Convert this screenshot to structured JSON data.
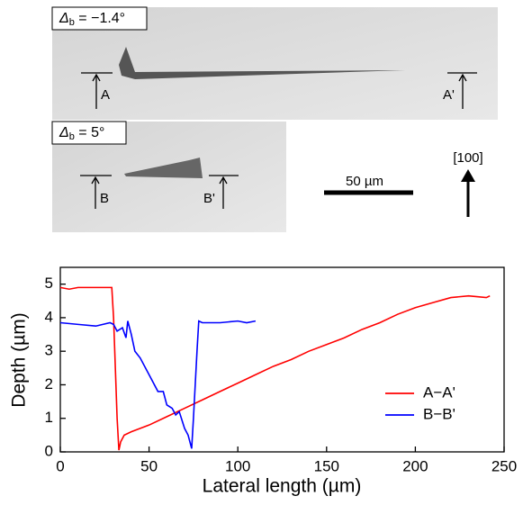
{
  "figure": {
    "panel_a": {
      "symbol": "Δ",
      "sub": "b",
      "rest": " = −1.4°",
      "start": "A",
      "end": "A'"
    },
    "panel_b": {
      "symbol": "Δ",
      "sub": "b",
      "rest": " = 5°",
      "start": "B",
      "end": "B'"
    },
    "scale_bar": "50 µm",
    "direction": "[100]"
  },
  "chart_data": {
    "type": "line",
    "x_label": "Lateral length (µm)",
    "y_label": "Depth (µm)",
    "xlim": [
      0,
      250
    ],
    "xticks": [
      0,
      50,
      100,
      150,
      200,
      250
    ],
    "ylim": [
      0,
      5.5
    ],
    "yticks": [
      0,
      1,
      2,
      3,
      4,
      5
    ],
    "legend": "lower-right",
    "series": [
      {
        "name": "A−A'",
        "color": "#ff0000",
        "x": [
          0,
          5,
          10,
          20,
          29,
          30,
          31,
          32,
          33,
          34,
          36,
          40,
          50,
          60,
          70,
          80,
          90,
          100,
          110,
          120,
          130,
          140,
          150,
          160,
          170,
          180,
          190,
          200,
          210,
          220,
          230,
          240,
          242
        ],
        "values": [
          4.9,
          4.85,
          4.9,
          4.9,
          4.9,
          4.0,
          2.5,
          1.0,
          0.05,
          0.3,
          0.5,
          0.6,
          0.8,
          1.05,
          1.3,
          1.55,
          1.8,
          2.05,
          2.3,
          2.55,
          2.75,
          3.0,
          3.2,
          3.4,
          3.65,
          3.85,
          4.1,
          4.3,
          4.45,
          4.6,
          4.65,
          4.6,
          4.65
        ]
      },
      {
        "name": "B−B'",
        "color": "#0000ff",
        "x": [
          0,
          10,
          20,
          28,
          30,
          32,
          35,
          37,
          38,
          40,
          42,
          45,
          50,
          55,
          58,
          60,
          63,
          65,
          67,
          70,
          72,
          74,
          75,
          77,
          78,
          80,
          90,
          100,
          105,
          110
        ],
        "values": [
          3.85,
          3.8,
          3.75,
          3.85,
          3.8,
          3.6,
          3.7,
          3.4,
          3.9,
          3.5,
          3.0,
          2.8,
          2.3,
          1.8,
          1.8,
          1.4,
          1.3,
          1.1,
          1.2,
          0.7,
          0.5,
          0.1,
          1.0,
          3.0,
          3.9,
          3.85,
          3.85,
          3.9,
          3.85,
          3.9
        ]
      }
    ]
  }
}
